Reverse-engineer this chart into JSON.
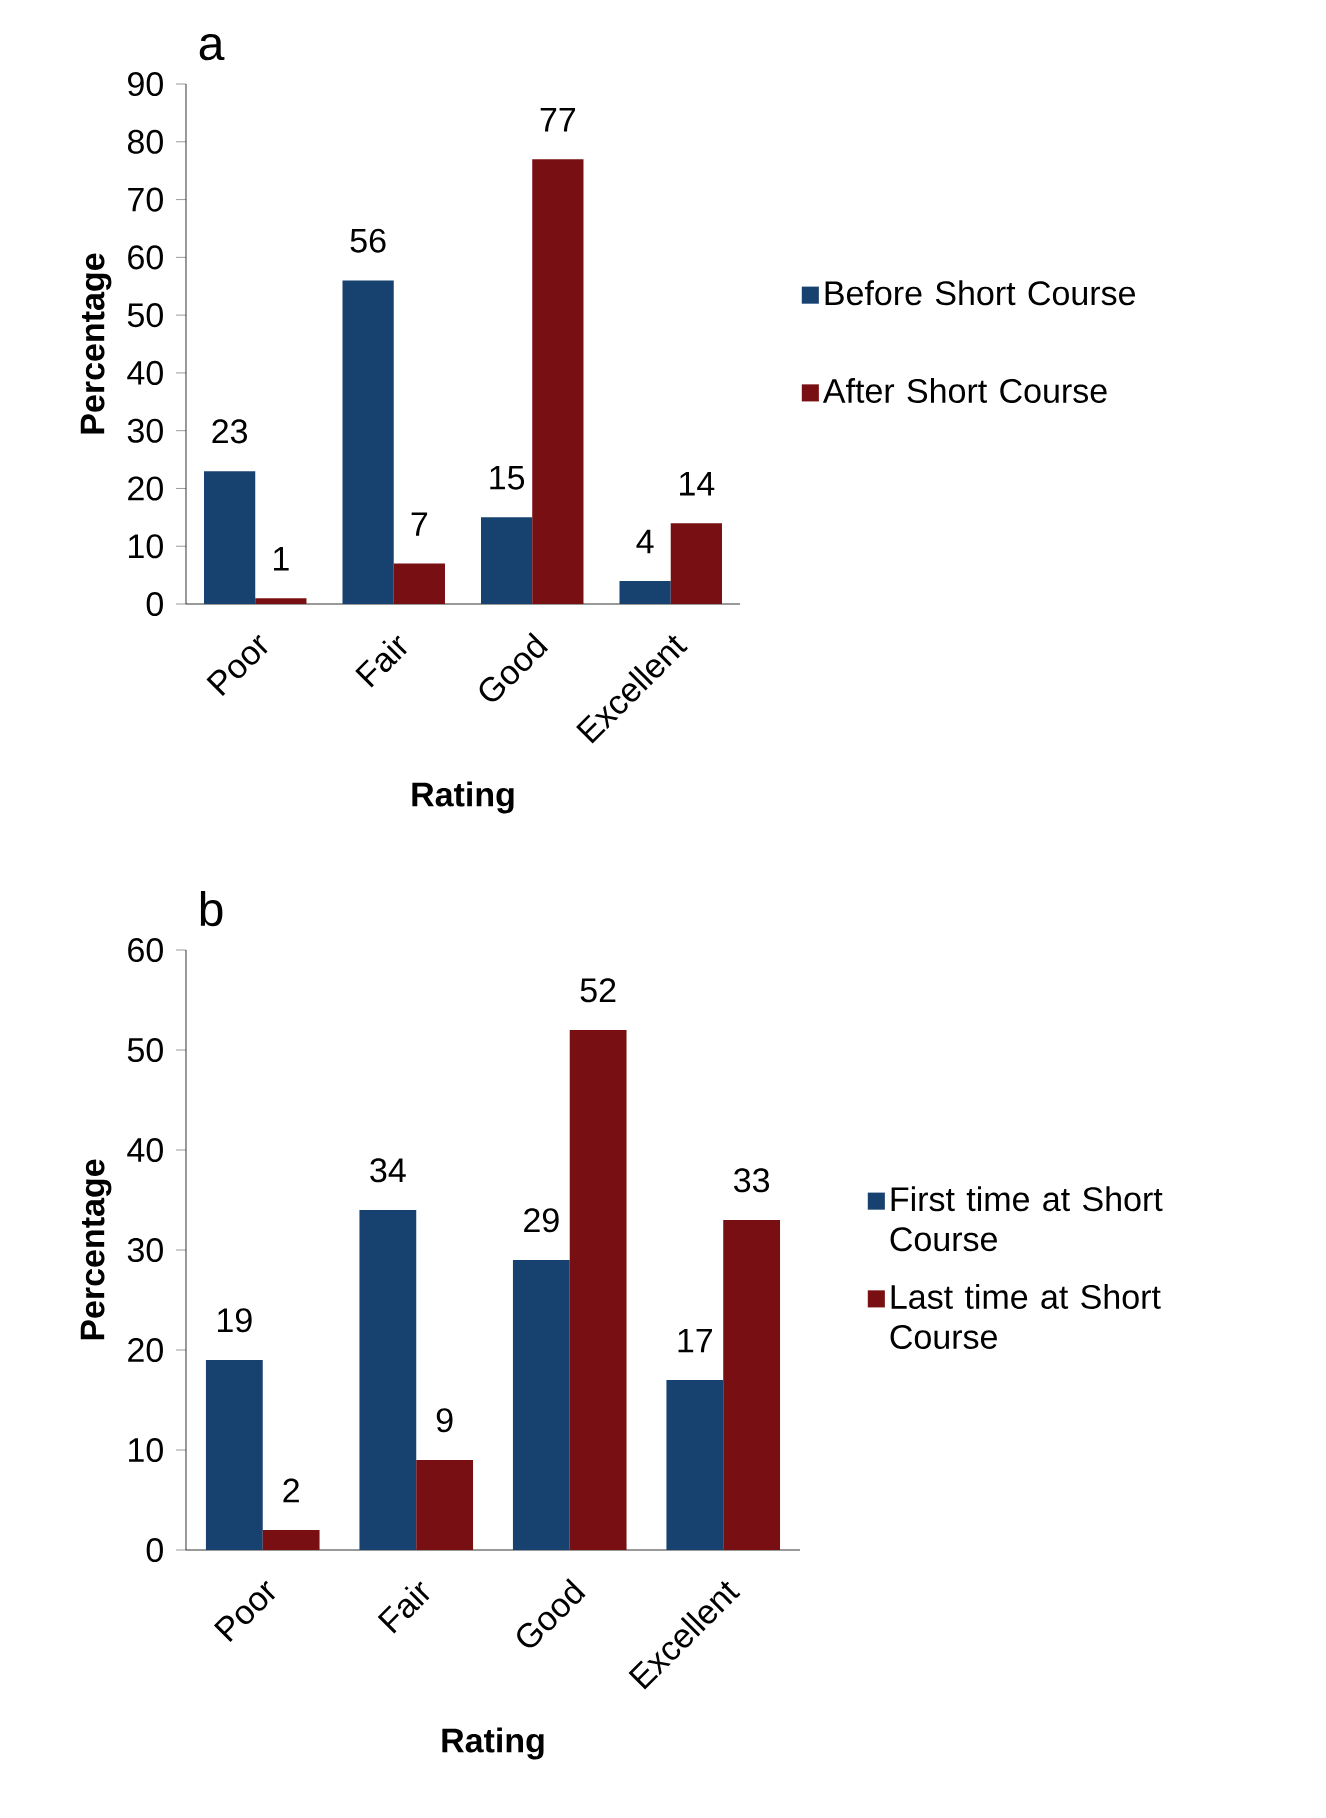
{
  "chart_data": [
    {
      "type": "bar",
      "title": "a",
      "xlabel": "Rating",
      "ylabel": "Percentage",
      "categories": [
        "Poor",
        "Fair",
        "Good",
        "Excellent"
      ],
      "series": [
        {
          "name": "Before Short Course",
          "color": "#17416f",
          "values": [
            23,
            56,
            15,
            4
          ]
        },
        {
          "name": "After Short Course",
          "color": "#780f12",
          "values": [
            1,
            7,
            77,
            14
          ]
        }
      ],
      "ylim": [
        0,
        90
      ],
      "yticks": [
        0,
        10,
        20,
        30,
        40,
        50,
        60,
        70,
        80,
        90
      ],
      "data_labels": true,
      "legend": "right"
    },
    {
      "type": "bar",
      "title": "b",
      "xlabel": "Rating",
      "ylabel": "Percentage",
      "categories": [
        "Poor",
        "Fair",
        "Good",
        "Excellent"
      ],
      "series": [
        {
          "name": "First time at Short Course",
          "color": "#17416f",
          "values": [
            19,
            34,
            29,
            17
          ]
        },
        {
          "name": "Last time at Short Course",
          "color": "#780f12",
          "values": [
            2,
            9,
            52,
            33
          ]
        }
      ],
      "ylim": [
        0,
        60
      ],
      "yticks": [
        0,
        10,
        20,
        30,
        40,
        50,
        60
      ],
      "data_labels": true,
      "legend": "right"
    }
  ]
}
